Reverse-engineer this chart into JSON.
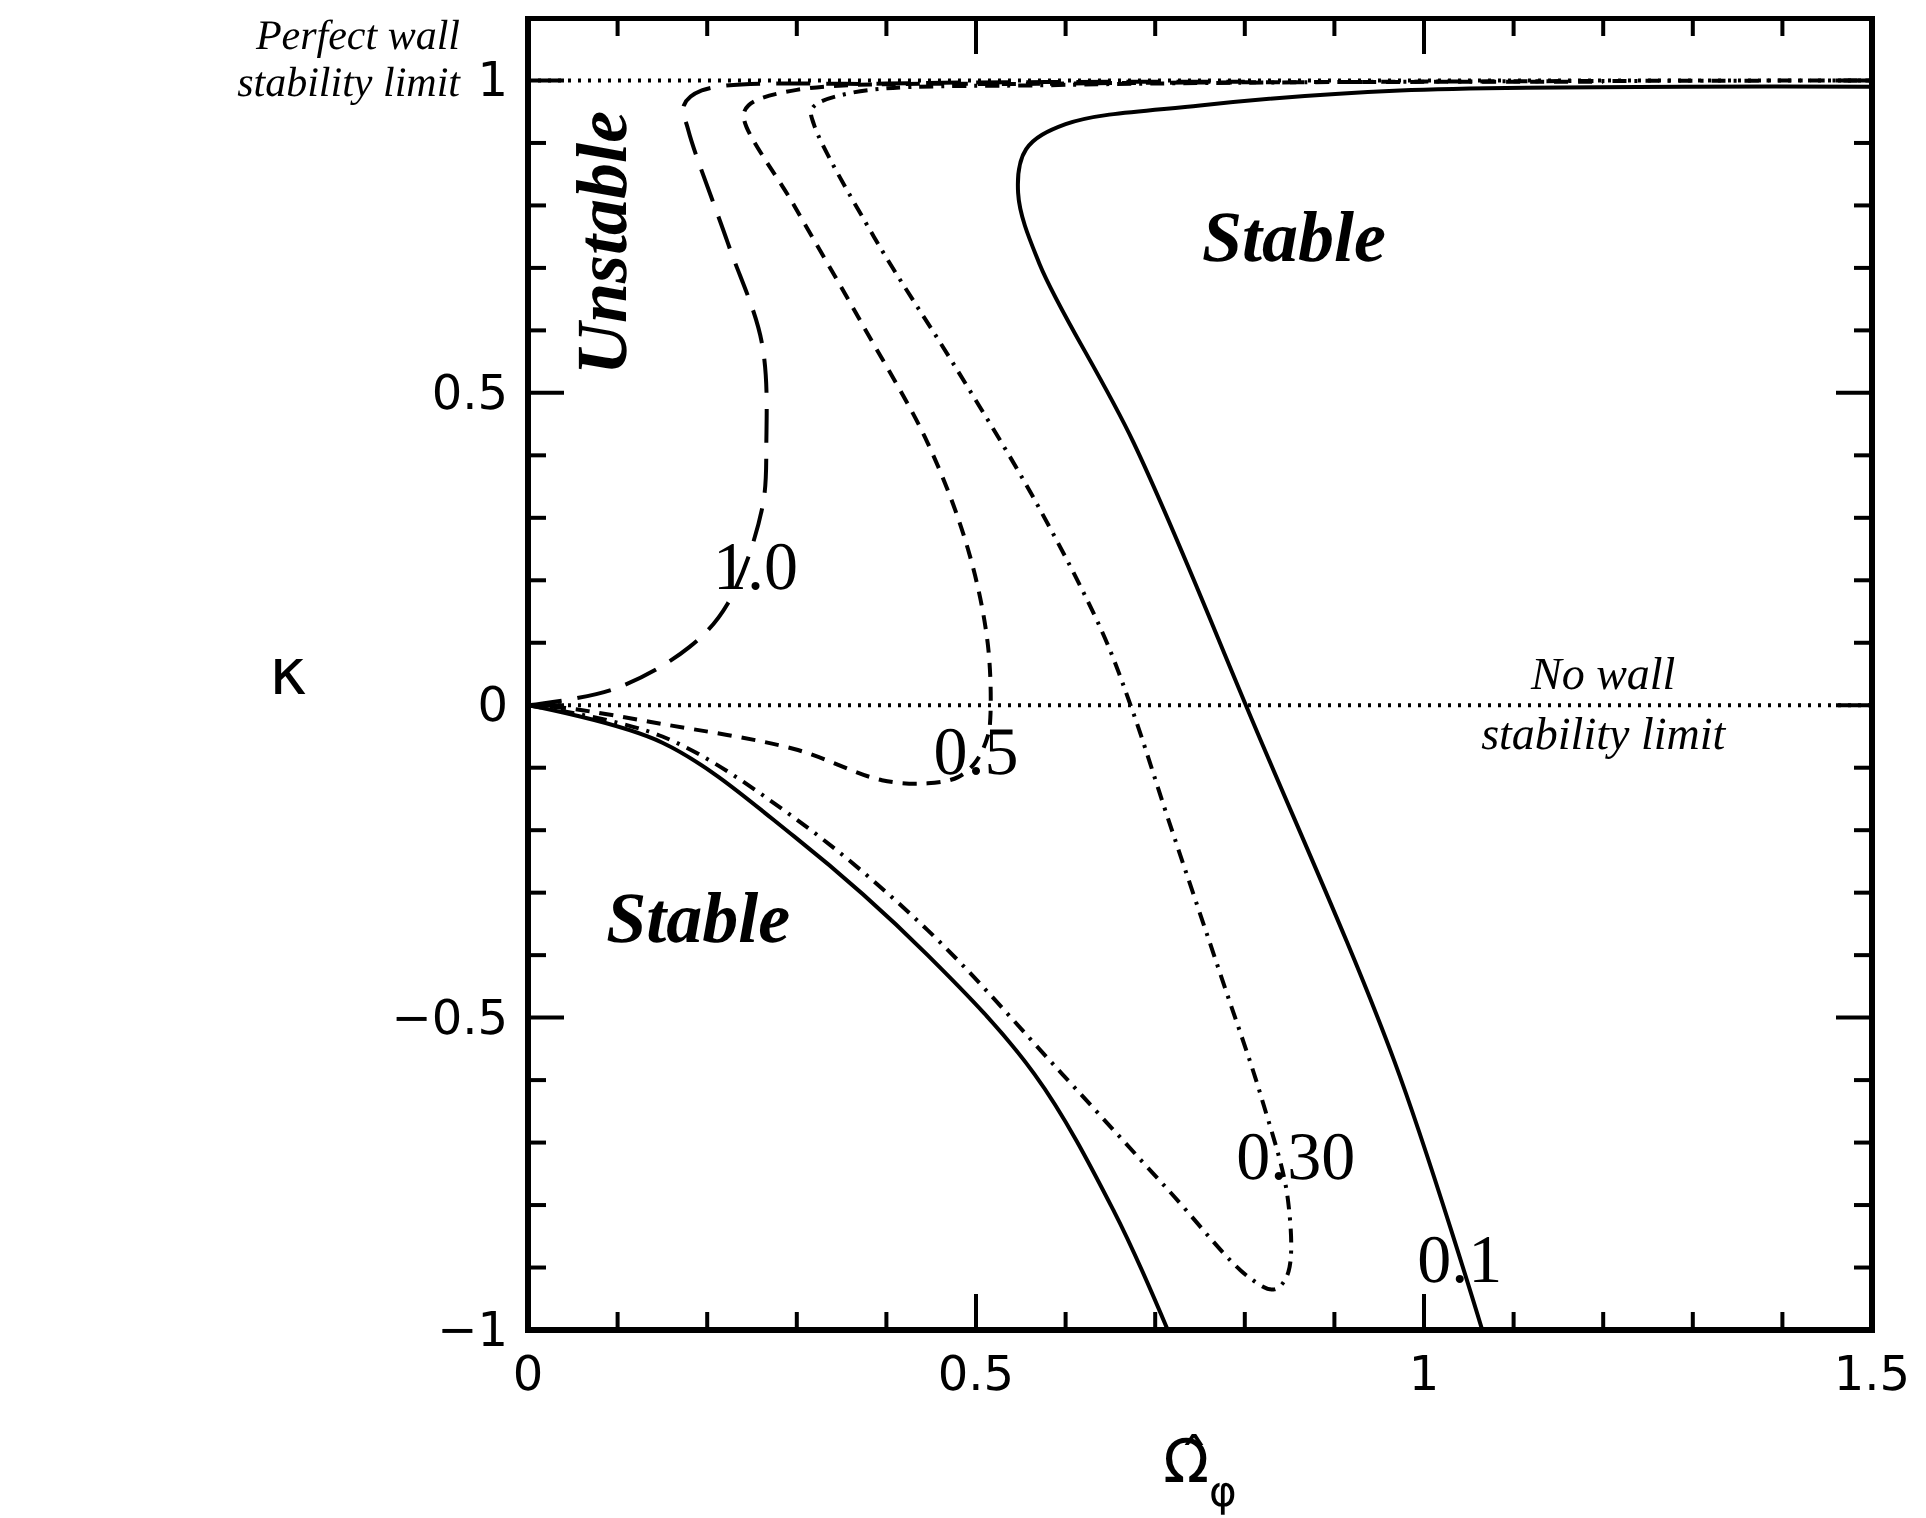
{
  "chart_data": {
    "type": "line",
    "xlabel": "Ω̂$_{φ}$",
    "ylabel": "κ",
    "xlim": [
      0,
      1.5
    ],
    "ylim": [
      -1,
      1.1
    ],
    "xticks": [
      0,
      {
        "value": 0.1,
        "label": null
      },
      {
        "value": 0.2,
        "label": null
      },
      {
        "value": 0.3,
        "label": null
      },
      {
        "value": 0.4,
        "label": null
      },
      0.5,
      {
        "value": 0.6,
        "label": null
      },
      {
        "value": 0.7,
        "label": null
      },
      {
        "value": 0.8,
        "label": null
      },
      {
        "value": 0.9,
        "label": null
      },
      1,
      {
        "value": 1.1,
        "label": null
      },
      {
        "value": 1.2,
        "label": null
      },
      {
        "value": 1.3,
        "label": null
      },
      {
        "value": 1.4,
        "label": null
      },
      1.5
    ],
    "yticks": [
      {
        "value": -1,
        "label": "−1"
      },
      {
        "value": -0.9,
        "label": null
      },
      {
        "value": -0.8,
        "label": null
      },
      {
        "value": -0.7,
        "label": null
      },
      {
        "value": -0.6,
        "label": null
      },
      {
        "value": -0.5,
        "label": "−0.5"
      },
      {
        "value": -0.4,
        "label": null
      },
      {
        "value": -0.3,
        "label": null
      },
      {
        "value": -0.2,
        "label": null
      },
      {
        "value": -0.1,
        "label": null
      },
      0,
      {
        "value": 0.1,
        "label": null
      },
      {
        "value": 0.2,
        "label": null
      },
      {
        "value": 0.3,
        "label": null
      },
      {
        "value": 0.4,
        "label": null
      },
      0.5,
      {
        "value": 0.6,
        "label": null
      },
      {
        "value": 0.7,
        "label": null
      },
      {
        "value": 0.8,
        "label": null
      },
      {
        "value": 0.9,
        "label": null
      },
      1,
      {
        "value": 1.1,
        "label": null
      }
    ],
    "grid": false,
    "marker": "none",
    "series": [
      {
        "color": "#000000",
        "line_style": "longdash",
        "x": [
          0,
          0.096,
          0.18,
          0.223,
          0.261,
          0.266,
          0.261,
          0.223,
          0.179,
          0.174,
          0.194,
          0.4,
          0.8
        ],
        "values": [
          0,
          0.026,
          0.093,
          0.163,
          0.313,
          0.42,
          0.58,
          0.74,
          0.92,
          0.96,
          0.984,
          0.995,
          0.998
        ]
      },
      {
        "color": "#000000",
        "line_style": "dashed",
        "x": [
          0,
          0.045,
          0.15,
          0.297,
          0.395,
          0.446,
          0.48,
          0.5,
          0.513,
          0.516,
          0.513,
          0.491,
          0.446,
          0.373,
          0.297,
          0.241,
          0.246,
          0.3,
          0.6,
          1.2
        ],
        "values": [
          0,
          -0.005,
          -0.03,
          -0.07,
          -0.12,
          -0.125,
          -0.115,
          -0.09,
          -0.05,
          -0.02,
          0.1,
          0.25,
          0.42,
          0.61,
          0.8,
          0.94,
          0.96,
          0.985,
          0.995,
          0.998
        ]
      },
      {
        "color": "#000000",
        "line_style": "dashdot",
        "x": [
          0,
          0.15,
          0.297,
          0.446,
          0.596,
          0.714,
          0.804,
          0.833,
          0.848,
          0.848,
          0.819,
          0.775,
          0.714,
          0.674,
          0.64,
          0.565,
          0.475,
          0.386,
          0.319,
          0.317,
          0.36,
          0.6,
          1.5
        ],
        "values": [
          0,
          -0.05,
          -0.18,
          -0.36,
          -0.59,
          -0.775,
          -0.915,
          -0.935,
          -0.91,
          -0.79,
          -0.63,
          -0.44,
          -0.18,
          -0.006,
          0.12,
          0.33,
          0.546,
          0.75,
          0.93,
          0.955,
          0.98,
          0.993,
          1
        ]
      },
      {
        "color": "#000000",
        "line_style": "solid",
        "x": [
          0,
          0.15,
          0.297,
          0.446,
          0.565,
          0.654,
          0.714,
          0.9,
          1.065,
          0.967,
          0.81,
          0.676,
          0.571,
          0.547,
          0.556,
          0.6,
          0.75,
          0.973,
          1.5
        ],
        "values": [
          0,
          -0.06,
          -0.21,
          -0.4,
          -0.59,
          -0.81,
          -1,
          null,
          -1,
          -0.57,
          -0.03,
          0.42,
          0.706,
          0.82,
          0.89,
          0.93,
          0.96,
          0.984,
          0.99
        ]
      }
    ],
    "ref_lines": [
      {
        "axis": "y",
        "value": 1,
        "label": "Perfect wall\nstability limit",
        "line_style": "dotted"
      },
      {
        "axis": "y",
        "value": 0,
        "label": "No wall\nstability limit",
        "line_style": "dotted"
      }
    ],
    "annotations": [
      "Unstable",
      "Stable",
      "Stable",
      "1.0",
      "0.5",
      "0.30",
      "0.1"
    ]
  }
}
